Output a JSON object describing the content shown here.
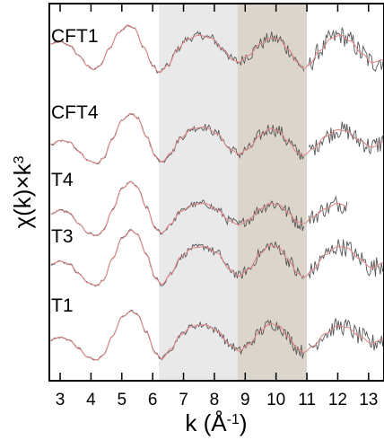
{
  "chart_data": {
    "type": "line",
    "title": "",
    "xlabel": "k (Å",
    "xlabel_sup": "-1",
    "xlabel_close": ")",
    "ylabel": "χ(k)×k",
    "ylabel_sup": "3",
    "xlim": [
      2.65,
      13.5
    ],
    "xticks": [
      "3",
      "4",
      "5",
      "6",
      "7",
      "8",
      "9",
      "10",
      "11",
      "12",
      "13"
    ],
    "grid": false,
    "shaded_regions": [
      {
        "x": [
          6.2,
          8.75
        ],
        "color": "#e9e9e9"
      },
      {
        "x": [
          8.75,
          11.0
        ],
        "color": "#dcd5cc"
      }
    ],
    "colors": {
      "data": "#555555",
      "fit": "#e08a8a"
    },
    "series": [
      {
        "name": "CFT1",
        "shape": [
          [
            2.7,
            0.35
          ],
          [
            3.0,
            0.42
          ],
          [
            3.3,
            0.3
          ],
          [
            3.6,
            -0.05
          ],
          [
            3.9,
            -0.42
          ],
          [
            4.1,
            -0.55
          ],
          [
            4.3,
            -0.4
          ],
          [
            4.6,
            0.2
          ],
          [
            4.9,
            0.75
          ],
          [
            5.2,
            1.0
          ],
          [
            5.4,
            0.9
          ],
          [
            5.7,
            0.25
          ],
          [
            6.0,
            -0.4
          ],
          [
            6.2,
            -0.65
          ],
          [
            6.5,
            -0.4
          ],
          [
            6.8,
            0.15
          ],
          [
            7.1,
            0.5
          ],
          [
            7.5,
            0.65
          ],
          [
            7.9,
            0.55
          ],
          [
            8.3,
            0.15
          ],
          [
            8.6,
            -0.22
          ],
          [
            8.8,
            -0.28
          ],
          [
            9.1,
            -0.05
          ],
          [
            9.5,
            0.35
          ],
          [
            9.8,
            0.55
          ],
          [
            10.1,
            0.5
          ],
          [
            10.4,
            0.15
          ],
          [
            10.7,
            -0.3
          ],
          [
            10.9,
            -0.5
          ],
          [
            11.1,
            -0.35
          ],
          [
            11.4,
            0.1
          ],
          [
            11.8,
            0.55
          ],
          [
            12.1,
            0.65
          ],
          [
            12.4,
            0.45
          ],
          [
            12.8,
            0.0
          ],
          [
            13.1,
            -0.3
          ],
          [
            13.5,
            -0.2
          ]
        ]
      },
      {
        "name": "CFT4",
        "shape": [
          [
            2.7,
            -0.3
          ],
          [
            3.0,
            -0.15
          ],
          [
            3.3,
            -0.2
          ],
          [
            3.6,
            -0.55
          ],
          [
            3.9,
            -0.9
          ],
          [
            4.2,
            -1.0
          ],
          [
            4.4,
            -0.8
          ],
          [
            4.7,
            -0.1
          ],
          [
            5.0,
            0.6
          ],
          [
            5.3,
            0.85
          ],
          [
            5.5,
            0.7
          ],
          [
            5.8,
            0.0
          ],
          [
            6.1,
            -0.75
          ],
          [
            6.3,
            -0.95
          ],
          [
            6.6,
            -0.6
          ],
          [
            6.9,
            -0.05
          ],
          [
            7.3,
            0.3
          ],
          [
            7.7,
            0.35
          ],
          [
            8.1,
            0.1
          ],
          [
            8.5,
            -0.45
          ],
          [
            8.8,
            -0.65
          ],
          [
            9.1,
            -0.45
          ],
          [
            9.5,
            0.05
          ],
          [
            9.8,
            0.3
          ],
          [
            10.1,
            0.2
          ],
          [
            10.4,
            -0.2
          ],
          [
            10.7,
            -0.6
          ],
          [
            10.9,
            -0.7
          ],
          [
            11.2,
            -0.45
          ],
          [
            11.6,
            0.0
          ],
          [
            12.0,
            0.25
          ],
          [
            12.3,
            0.2
          ],
          [
            12.7,
            -0.15
          ],
          [
            13.1,
            -0.4
          ],
          [
            13.5,
            -0.2
          ]
        ]
      },
      {
        "name": "T4",
        "shape": [
          [
            2.7,
            -0.35
          ],
          [
            3.0,
            -0.2
          ],
          [
            3.3,
            -0.3
          ],
          [
            3.6,
            -0.7
          ],
          [
            3.9,
            -1.05
          ],
          [
            4.2,
            -1.15
          ],
          [
            4.4,
            -0.95
          ],
          [
            4.7,
            -0.2
          ],
          [
            5.0,
            0.6
          ],
          [
            5.3,
            0.85
          ],
          [
            5.5,
            0.65
          ],
          [
            5.8,
            -0.1
          ],
          [
            6.1,
            -0.9
          ],
          [
            6.3,
            -1.05
          ],
          [
            6.6,
            -0.7
          ],
          [
            6.9,
            -0.25
          ],
          [
            7.3,
            0.0
          ],
          [
            7.7,
            0.05
          ],
          [
            8.1,
            -0.2
          ],
          [
            8.5,
            -0.6
          ],
          [
            8.8,
            -0.75
          ],
          [
            9.1,
            -0.55
          ],
          [
            9.5,
            -0.15
          ],
          [
            9.8,
            0.05
          ],
          [
            10.1,
            0.0
          ],
          [
            10.4,
            -0.3
          ],
          [
            10.7,
            -0.65
          ],
          [
            10.9,
            -0.7
          ],
          [
            11.2,
            -0.45
          ],
          [
            11.6,
            -0.15
          ],
          [
            12.0,
            0.05
          ],
          [
            12.3,
            -0.05
          ]
        ]
      },
      {
        "name": "T3",
        "shape": [
          [
            2.7,
            -0.3
          ],
          [
            3.0,
            -0.2
          ],
          [
            3.3,
            -0.3
          ],
          [
            3.6,
            -0.65
          ],
          [
            3.9,
            -1.0
          ],
          [
            4.2,
            -1.1
          ],
          [
            4.4,
            -0.9
          ],
          [
            4.7,
            -0.1
          ],
          [
            5.0,
            0.65
          ],
          [
            5.3,
            0.95
          ],
          [
            5.5,
            0.8
          ],
          [
            5.8,
            0.05
          ],
          [
            6.1,
            -0.85
          ],
          [
            6.3,
            -1.05
          ],
          [
            6.6,
            -0.65
          ],
          [
            6.9,
            -0.05
          ],
          [
            7.3,
            0.3
          ],
          [
            7.7,
            0.35
          ],
          [
            8.1,
            0.1
          ],
          [
            8.5,
            -0.5
          ],
          [
            8.8,
            -0.75
          ],
          [
            9.1,
            -0.5
          ],
          [
            9.5,
            0.1
          ],
          [
            9.8,
            0.4
          ],
          [
            10.1,
            0.3
          ],
          [
            10.4,
            -0.15
          ],
          [
            10.7,
            -0.65
          ],
          [
            10.9,
            -0.8
          ],
          [
            11.2,
            -0.5
          ],
          [
            11.6,
            0.05
          ],
          [
            12.0,
            0.35
          ],
          [
            12.3,
            0.3
          ],
          [
            12.7,
            -0.1
          ],
          [
            13.1,
            -0.45
          ],
          [
            13.5,
            -0.25
          ]
        ]
      },
      {
        "name": "T1",
        "shape": [
          [
            2.7,
            -0.3
          ],
          [
            3.0,
            -0.2
          ],
          [
            3.3,
            -0.3
          ],
          [
            3.6,
            -0.65
          ],
          [
            3.9,
            -1.0
          ],
          [
            4.2,
            -1.1
          ],
          [
            4.4,
            -0.9
          ],
          [
            4.7,
            -0.15
          ],
          [
            5.0,
            0.6
          ],
          [
            5.3,
            0.85
          ],
          [
            5.5,
            0.7
          ],
          [
            5.8,
            0.0
          ],
          [
            6.1,
            -0.85
          ],
          [
            6.3,
            -1.05
          ],
          [
            6.6,
            -0.65
          ],
          [
            6.9,
            -0.1
          ],
          [
            7.3,
            0.25
          ],
          [
            7.7,
            0.3
          ],
          [
            8.1,
            0.05
          ],
          [
            8.5,
            -0.5
          ],
          [
            8.8,
            -0.75
          ],
          [
            9.1,
            -0.5
          ],
          [
            9.5,
            0.05
          ],
          [
            9.8,
            0.35
          ],
          [
            10.1,
            0.25
          ],
          [
            10.4,
            -0.2
          ],
          [
            10.7,
            -0.65
          ],
          [
            10.9,
            -0.8
          ],
          [
            11.2,
            -0.55
          ],
          [
            11.6,
            -0.05
          ],
          [
            12.0,
            0.25
          ],
          [
            12.3,
            0.2
          ],
          [
            12.7,
            -0.15
          ],
          [
            13.1,
            -0.45
          ],
          [
            13.5,
            -0.25
          ]
        ]
      }
    ]
  }
}
